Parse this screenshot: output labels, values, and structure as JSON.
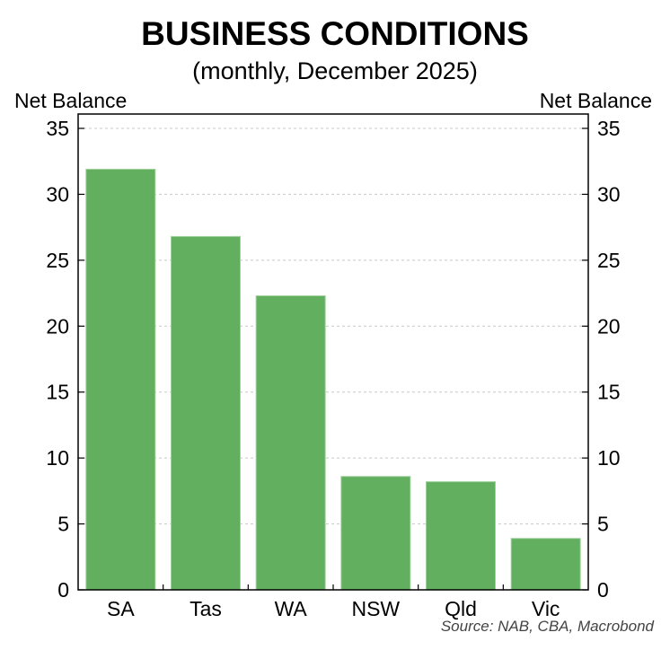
{
  "header": {
    "title": "BUSINESS CONDITIONS",
    "subtitle": "(monthly, December 2025)"
  },
  "axes": {
    "left_unit": "Net Balance",
    "right_unit": "Net Balance",
    "ticks": [
      "0",
      "5",
      "10",
      "15",
      "20",
      "25",
      "30",
      "35"
    ]
  },
  "footer": {
    "source": "Source: NAB, CBA, Macrobond"
  },
  "colors": {
    "bar": "#62af5f",
    "grid": "#c8c8c8",
    "frame": "#000000"
  },
  "chart_data": {
    "type": "bar",
    "title": "BUSINESS CONDITIONS",
    "subtitle": "(monthly, December 2025)",
    "categories": [
      "SA",
      "Tas",
      "WA",
      "NSW",
      "Qld",
      "Vic"
    ],
    "values": [
      31.9,
      26.8,
      22.3,
      8.6,
      8.2,
      3.9
    ],
    "xlabel": "",
    "ylabel": "Net Balance",
    "ylabel_right": "Net Balance",
    "ylim": [
      0,
      35
    ],
    "yticks": [
      0,
      5,
      10,
      15,
      20,
      25,
      30,
      35
    ],
    "grid": true,
    "legend": "none",
    "source": "Source: NAB, CBA, Macrobond"
  }
}
